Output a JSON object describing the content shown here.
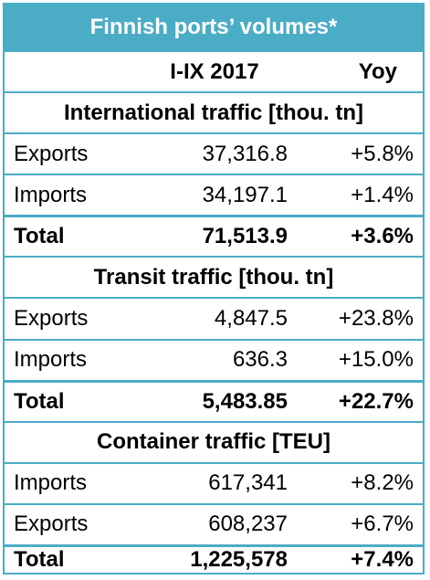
{
  "title": "Finnish ports’ volumes*",
  "header": {
    "col1": "",
    "col2": "I-IX 2017",
    "col3": "Yoy"
  },
  "sections": [
    {
      "title": "International traffic [thou. tn]",
      "rows": [
        {
          "label": "Exports",
          "value": "37,316.8",
          "yoy": "+5.8%"
        },
        {
          "label": "Imports",
          "value": "34,197.1",
          "yoy": "+1.4%"
        },
        {
          "label": "Total",
          "value": "71,513.9",
          "yoy": "+3.6%"
        }
      ]
    },
    {
      "title": "Transit traffic [thou. tn]",
      "rows": [
        {
          "label": "Exports",
          "value": "4,847.5",
          "yoy": "+23.8%"
        },
        {
          "label": "Imports",
          "value": "636.3",
          "yoy": "+15.0%"
        },
        {
          "label": "Total",
          "value": "5,483.85",
          "yoy": "+22.7%"
        }
      ]
    },
    {
      "title": "Container traffic [TEU]",
      "rows": [
        {
          "label": "Imports",
          "value": "617,341",
          "yoy": "+8.2%"
        },
        {
          "label": "Exports",
          "value": "608,237",
          "yoy": "+6.7%"
        },
        {
          "label": "Total",
          "value": "1,225,578",
          "yoy": "+7.4%"
        }
      ]
    }
  ],
  "colors": {
    "accent": "#4bacc6",
    "title_text": "#ffffff",
    "body_text": "#000000"
  }
}
